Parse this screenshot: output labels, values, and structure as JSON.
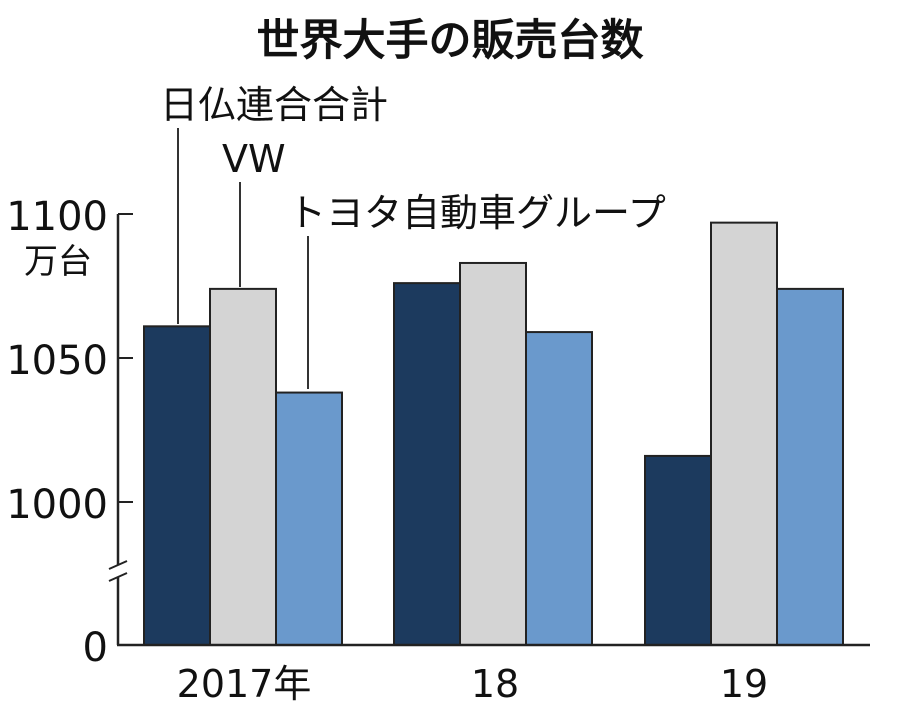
{
  "chart_data": {
    "type": "bar",
    "title": "世界大手の販売台数",
    "unit_label": "万台",
    "categories": [
      "2017年",
      "18",
      "19"
    ],
    "series": [
      {
        "name": "日仏連合合計",
        "values": [
          1061,
          1076,
          1016
        ],
        "color": "#1c3a5e"
      },
      {
        "name": "VW",
        "values": [
          1074,
          1083,
          1097
        ],
        "color": "#d4d4d4"
      },
      {
        "name": "トヨタ自動車グループ",
        "values": [
          1038,
          1059,
          1074
        ],
        "color": "#6a99cc"
      }
    ],
    "y_ticks": [
      "1100",
      "1050",
      "1000",
      "0"
    ],
    "ylim": [
      1000,
      1100
    ],
    "y_axis_break": true,
    "grid": false,
    "legend": "leader-line labels above the 2017 bars"
  }
}
